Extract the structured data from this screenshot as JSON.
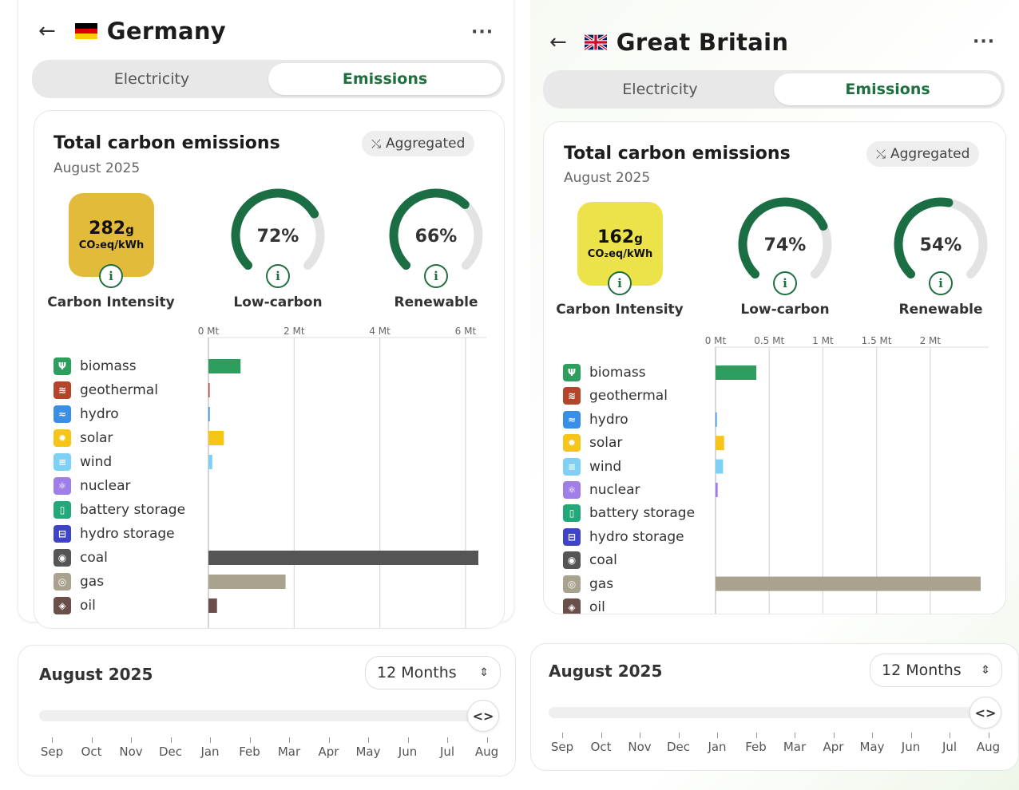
{
  "left": {
    "country": "Germany",
    "tabs": [
      "Electricity",
      "Emissions"
    ],
    "card_title": "Total carbon emissions",
    "card_subtitle": "August 2025",
    "aggregated_label": "Aggregated",
    "carbon_intensity": {
      "value": "282",
      "unit_suffix": "g",
      "unit": "CO₂eq/kWh",
      "label": "Carbon Intensity",
      "color": "#e2bb3a"
    },
    "low_carbon": {
      "value_text": "72%",
      "fraction": 0.72,
      "label": "Low-carbon"
    },
    "renewable": {
      "value_text": "66%",
      "fraction": 0.66,
      "label": "Renewable"
    },
    "chart_data": {
      "type": "bar",
      "orientation": "horizontal",
      "unit": "Mt",
      "xlim": [
        0,
        6.3
      ],
      "ticks": [
        0,
        2,
        4,
        6
      ],
      "tick_labels": [
        "0 Mt",
        "2 Mt",
        "4 Mt",
        "6 Mt"
      ],
      "categories": [
        "biomass",
        "geothermal",
        "hydro",
        "solar",
        "wind",
        "nuclear",
        "battery storage",
        "hydro storage",
        "coal",
        "gas",
        "oil"
      ],
      "values": [
        0.75,
        0.02,
        0.03,
        0.36,
        0.09,
        0,
        0,
        0,
        6.3,
        1.8,
        0.2
      ]
    },
    "timeline": {
      "title": "August 2025",
      "range": "12 Months",
      "months": [
        "Sep",
        "Oct",
        "Nov",
        "Dec",
        "Jan",
        "Feb",
        "Mar",
        "Apr",
        "May",
        "Jun",
        "Jul",
        "Aug"
      ]
    }
  },
  "right": {
    "country": "Great Britain",
    "tabs": [
      "Electricity",
      "Emissions"
    ],
    "card_title": "Total carbon emissions",
    "card_subtitle": "August 2025",
    "aggregated_label": "Aggregated",
    "carbon_intensity": {
      "value": "162",
      "unit_suffix": "g",
      "unit": "CO₂eq/kWh",
      "label": "Carbon Intensity",
      "color": "#ece34a"
    },
    "low_carbon": {
      "value_text": "74%",
      "fraction": 0.74,
      "label": "Low-carbon"
    },
    "renewable": {
      "value_text": "54%",
      "fraction": 0.54,
      "label": "Renewable"
    },
    "chart_data": {
      "type": "bar",
      "orientation": "horizontal",
      "unit": "Mt",
      "xlim": [
        0,
        2.47
      ],
      "ticks": [
        0,
        0.5,
        1,
        1.5,
        2
      ],
      "tick_labels": [
        "0 Mt",
        "0.5 Mt",
        "1 Mt",
        "1.5 Mt",
        "2 Mt"
      ],
      "categories": [
        "biomass",
        "geothermal",
        "hydro",
        "solar",
        "wind",
        "nuclear",
        "battery storage",
        "hydro storage",
        "coal",
        "gas",
        "oil"
      ],
      "values": [
        0.38,
        0,
        0.01,
        0.08,
        0.07,
        0.02,
        0,
        0,
        0,
        2.47,
        0
      ]
    },
    "timeline": {
      "title": "August 2025",
      "range": "12 Months",
      "months": [
        "Sep",
        "Oct",
        "Nov",
        "Dec",
        "Jan",
        "Feb",
        "Mar",
        "Apr",
        "May",
        "Jun",
        "Jul",
        "Aug"
      ]
    }
  },
  "source_colors": {
    "biomass": "#2e9e5e",
    "geothermal": "#b5452a",
    "hydro": "#3a8ee6",
    "solar": "#f5c518",
    "wind": "#7fd0f5",
    "nuclear": "#a07ee8",
    "battery storage": "#24a87a",
    "hydro storage": "#3f43c8",
    "coal": "#555555",
    "gas": "#a8a28e",
    "oil": "#6b4f4a"
  },
  "icons": {
    "back": "arrow-left-icon",
    "more": "more-horizontal-icon",
    "aggregated": "merge-arrows-icon",
    "info": "info-icon",
    "stepper": "chevron-up-down-icon",
    "handle": "code-brackets-icon"
  }
}
